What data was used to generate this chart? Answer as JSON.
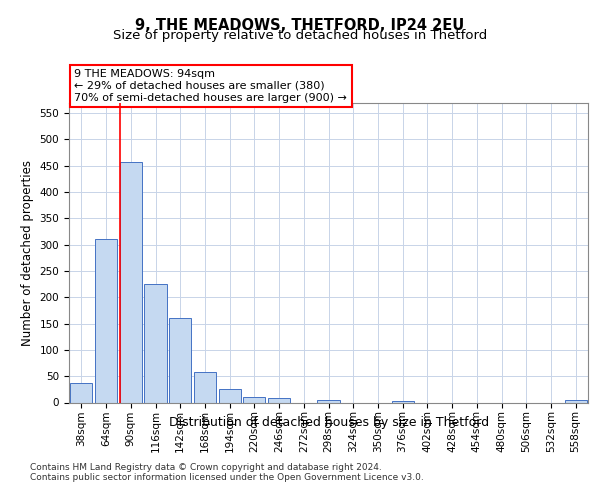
{
  "title": "9, THE MEADOWS, THETFORD, IP24 2EU",
  "subtitle": "Size of property relative to detached houses in Thetford",
  "xlabel": "Distribution of detached houses by size in Thetford",
  "ylabel": "Number of detached properties",
  "categories": [
    "38sqm",
    "64sqm",
    "90sqm",
    "116sqm",
    "142sqm",
    "168sqm",
    "194sqm",
    "220sqm",
    "246sqm",
    "272sqm",
    "298sqm",
    "324sqm",
    "350sqm",
    "376sqm",
    "402sqm",
    "428sqm",
    "454sqm",
    "480sqm",
    "506sqm",
    "532sqm",
    "558sqm"
  ],
  "values": [
    38,
    310,
    457,
    225,
    160,
    58,
    25,
    11,
    8,
    0,
    5,
    0,
    0,
    3,
    0,
    0,
    0,
    0,
    0,
    0,
    4
  ],
  "bar_color": "#c5d9f1",
  "bar_edge_color": "#4472c4",
  "red_line_x": 2,
  "annotation_text": "9 THE MEADOWS: 94sqm\n← 29% of detached houses are smaller (380)\n70% of semi-detached houses are larger (900) →",
  "annotation_box_color": "#ffffff",
  "annotation_box_edge_color": "#ff0000",
  "ylim": [
    0,
    570
  ],
  "yticks": [
    0,
    50,
    100,
    150,
    200,
    250,
    300,
    350,
    400,
    450,
    500,
    550
  ],
  "footer_text": "Contains HM Land Registry data © Crown copyright and database right 2024.\nContains public sector information licensed under the Open Government Licence v3.0.",
  "background_color": "#ffffff",
  "grid_color": "#c8d4e8",
  "title_fontsize": 10.5,
  "subtitle_fontsize": 9.5,
  "xlabel_fontsize": 9,
  "ylabel_fontsize": 8.5,
  "tick_fontsize": 7.5,
  "annotation_fontsize": 8,
  "footer_fontsize": 6.5
}
